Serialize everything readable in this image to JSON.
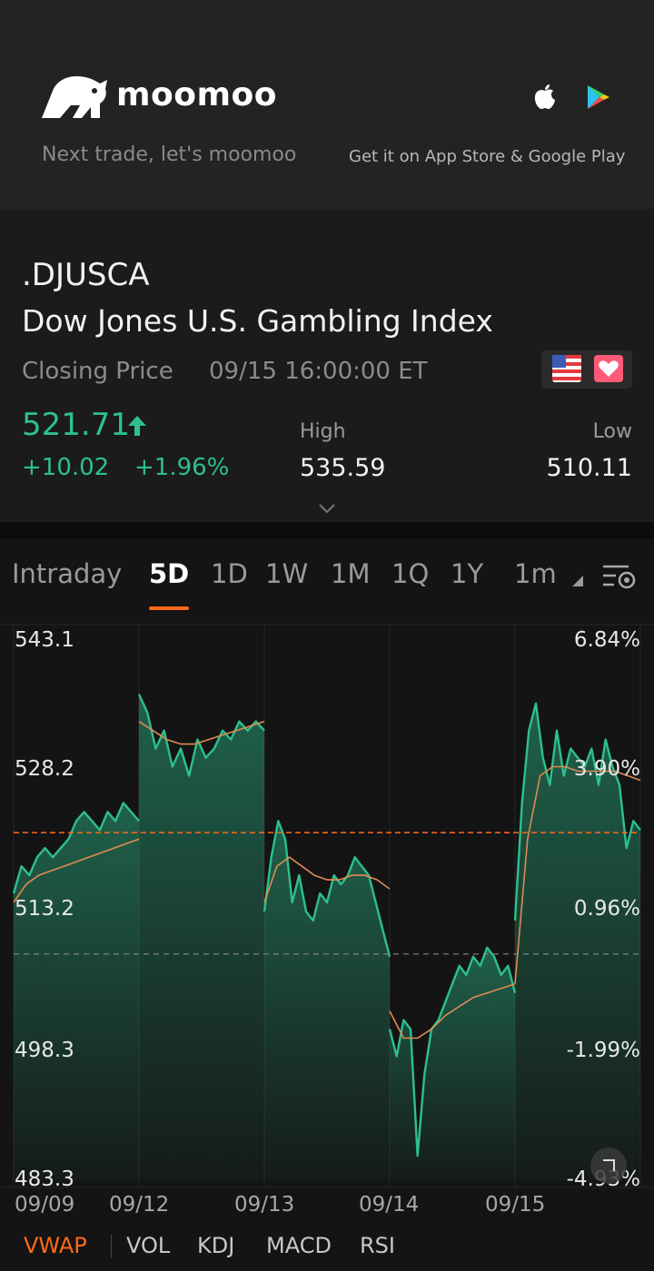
{
  "promo": {
    "brand": "moomoo",
    "tagline": "Next trade, let's moomoo",
    "store_text": "Get it on App Store & Google Play"
  },
  "quote": {
    "symbol": ".DJUSCA",
    "name": "Dow Jones U.S. Gambling Index",
    "closing_label": "Closing Price",
    "closing_time": "09/15 16:00:00 ET",
    "price": "521.71",
    "change": "+10.02",
    "change_pct": "+1.96%",
    "high_label": "High",
    "high_value": "535.59",
    "low_label": "Low",
    "low_value": "510.11",
    "up_color": "#2dc08d"
  },
  "tabs": {
    "items": [
      "Intraday",
      "5D",
      "1D",
      "1W",
      "1M",
      "1Q",
      "1Y",
      "1m"
    ],
    "active": "5D"
  },
  "indicators": {
    "items": [
      "VWAP",
      "VOL",
      "KDJ",
      "MACD",
      "RSI"
    ],
    "active": "VWAP",
    "accent": "#ff6a1a"
  },
  "chart_data": {
    "type": "line",
    "y_ticks": [
      "543.1",
      "528.2",
      "513.2",
      "498.3",
      "483.3"
    ],
    "pct_ticks": [
      "6.84%",
      "3.90%",
      "0.96%",
      "-1.99%",
      "-4.93%"
    ],
    "x_labels": [
      "09/09",
      "09/12",
      "09/13",
      "09/14",
      "09/15"
    ],
    "ylim": [
      483.3,
      543.1
    ],
    "prev_close": 508.3,
    "last_price": 521.71,
    "line_color": "#2dc08d",
    "vwap_color": "#e08b55",
    "series": [
      {
        "name": "price",
        "segments": [
          [
            515,
            518,
            517,
            519,
            520,
            519,
            520,
            521,
            523,
            524,
            523,
            522,
            524,
            523,
            525,
            524,
            523
          ],
          [
            537,
            535,
            531,
            533,
            529,
            531,
            528,
            532,
            530,
            531,
            533,
            532,
            534,
            533,
            534,
            533
          ],
          [
            513,
            519,
            523,
            521,
            514,
            517,
            513,
            512,
            515,
            514,
            517,
            516,
            517,
            519,
            518,
            517,
            514,
            511,
            508
          ],
          [
            500,
            497,
            501,
            500,
            486,
            495,
            500,
            501,
            503,
            505,
            507,
            506,
            508,
            507,
            509,
            508,
            506,
            507,
            504
          ],
          [
            512,
            525,
            533,
            536,
            530,
            527,
            533,
            528,
            531,
            530,
            529,
            531,
            527,
            532,
            529,
            527,
            520,
            523,
            522
          ]
        ]
      },
      {
        "name": "VWAP",
        "segments": [
          [
            514,
            516,
            517,
            517.5,
            518,
            518.5,
            519,
            519.5,
            520,
            520.5,
            521
          ],
          [
            534,
            533,
            532,
            531.5,
            531.5,
            532,
            532.5,
            533,
            533.5,
            534
          ],
          [
            514,
            518,
            519,
            518,
            517,
            516.5,
            516.5,
            517,
            517,
            516.5,
            515.5
          ],
          [
            502,
            499,
            499,
            500,
            501.5,
            502.5,
            503.5,
            504,
            504.5,
            505
          ],
          [
            505,
            521,
            528,
            529,
            529,
            528.5,
            528.5,
            528.5,
            528.5,
            528,
            527.5
          ]
        ]
      }
    ]
  }
}
